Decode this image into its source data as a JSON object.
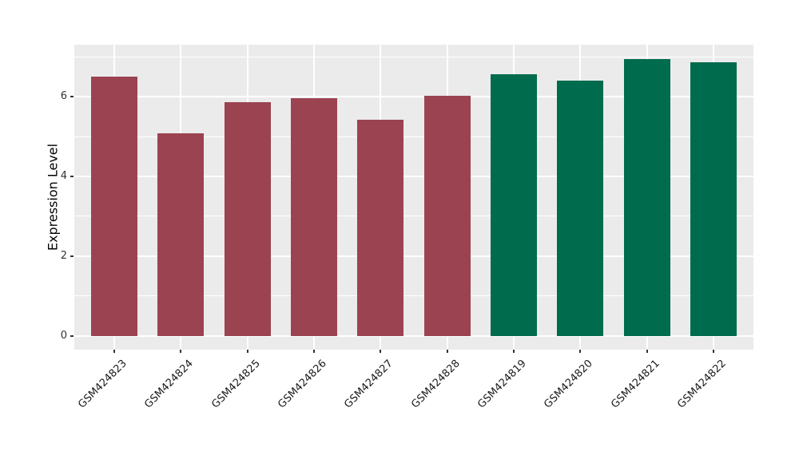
{
  "chart_data": {
    "type": "bar",
    "title": "",
    "xlabel": "",
    "ylabel": "Expression Level",
    "ylim": [
      -0.35,
      7.31
    ],
    "yticks": [
      0,
      2,
      4,
      6
    ],
    "yminor_ticks": [
      1,
      3,
      5,
      7
    ],
    "grid": "on",
    "legend": "none",
    "panel_bg": "#EBEBEB",
    "grid_color": "#FFFFFF",
    "tick_color": "#333333",
    "categories": [
      "GSM424823",
      "GSM424824",
      "GSM424825",
      "GSM424826",
      "GSM424827",
      "GSM424828",
      "GSM424819",
      "GSM424820",
      "GSM424821",
      "GSM424822"
    ],
    "values": [
      6.51,
      5.09,
      5.86,
      5.97,
      5.42,
      6.03,
      6.57,
      6.41,
      6.95,
      6.87
    ],
    "groups": [
      "A",
      "A",
      "A",
      "A",
      "A",
      "A",
      "B",
      "B",
      "B",
      "B"
    ],
    "group_colors": {
      "A": "#9B4351",
      "B": "#006B4D"
    }
  }
}
